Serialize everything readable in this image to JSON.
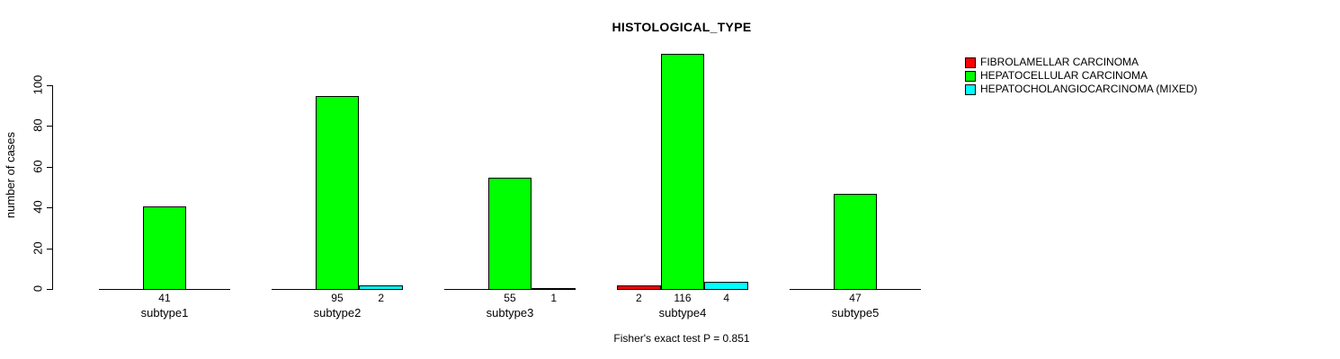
{
  "title": "HISTOLOGICAL_TYPE",
  "y_axis": {
    "label": "number of cases",
    "ticks": [
      0,
      20,
      40,
      60,
      80,
      100
    ]
  },
  "footer": "Fisher's exact test P = 0.851",
  "legend": [
    {
      "label": "FIBROLAMELLAR CARCINOMA",
      "color": "#ff0000"
    },
    {
      "label": "HEPATOCELLULAR CARCINOMA",
      "color": "#00ff00"
    },
    {
      "label": "HEPATOCHOLANGIOCARCINOMA (MIXED)",
      "color": "#00ffff"
    }
  ],
  "chart_data": {
    "type": "bar",
    "title": "HISTOLOGICAL_TYPE",
    "ylabel": "number of cases",
    "xlabel": "",
    "categories": [
      "subtype1",
      "subtype2",
      "subtype3",
      "subtype4",
      "subtype5"
    ],
    "series": [
      {
        "name": "FIBROLAMELLAR CARCINOMA",
        "color": "#ff0000",
        "values": [
          0,
          0,
          0,
          2,
          0
        ]
      },
      {
        "name": "HEPATOCELLULAR CARCINOMA",
        "color": "#00ff00",
        "values": [
          41,
          95,
          55,
          116,
          47
        ]
      },
      {
        "name": "HEPATOCHOLANGIOCARCINOMA (MIXED)",
        "color": "#00ffff",
        "values": [
          0,
          2,
          1,
          4,
          0
        ]
      }
    ],
    "bar_value_labels": [
      [
        "",
        "41",
        ""
      ],
      [
        "",
        "95",
        "2"
      ],
      [
        "",
        "55",
        "1"
      ],
      [
        "2",
        "116",
        "4"
      ],
      [
        "",
        "47",
        ""
      ]
    ],
    "yticks": [
      0,
      20,
      40,
      60,
      80,
      100
    ],
    "ylim": [
      0,
      116
    ],
    "grid": false,
    "legend_position": "right-outside",
    "annotation": "Fisher's exact test P = 0.851"
  }
}
